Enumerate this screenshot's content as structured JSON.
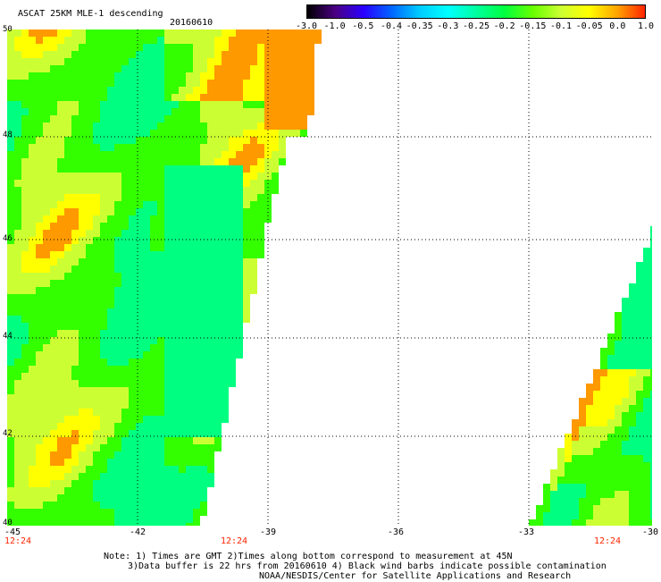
{
  "header": {
    "title": "ASCAT 25KM MLE-1 descending",
    "date": "20160610"
  },
  "colorbar": {
    "labels": [
      "-3.0",
      "-1.0",
      "-0.5",
      "-0.4",
      "-0.35",
      "-0.3",
      "-0.25",
      "-0.2",
      "-0.15",
      "-0.1",
      "-0.05",
      "0.0",
      "1.0"
    ],
    "colors": [
      "#000000",
      "#4b0082",
      "#2a00ff",
      "#0066ff",
      "#00ccff",
      "#00ffff",
      "#00ffa0",
      "#00ff40",
      "#66ff00",
      "#ccff33",
      "#ffff00",
      "#ffa500",
      "#ff2400"
    ]
  },
  "axes": {
    "y_ticks": [
      "50",
      "48",
      "46",
      "44",
      "42",
      "40"
    ],
    "x_ticks": [
      "-45",
      "-42",
      "-39",
      "-36",
      "-33",
      "-30"
    ],
    "times": [
      "12:24",
      "12:24",
      "12:24"
    ]
  },
  "notes": {
    "line1": "Note: 1) Times are GMT 2)Times along bottom correspond to measurement at 45N",
    "line2": "3)Data buffer is 22 hrs from 20160610 4) Black wind barbs indicate possible contamination",
    "line3": "NOAA/NESDIS/Center for Satellite Applications and Research"
  },
  "colors": {
    "grid": "#000000",
    "time_label": "#ff2400",
    "background": "#ffffff"
  }
}
